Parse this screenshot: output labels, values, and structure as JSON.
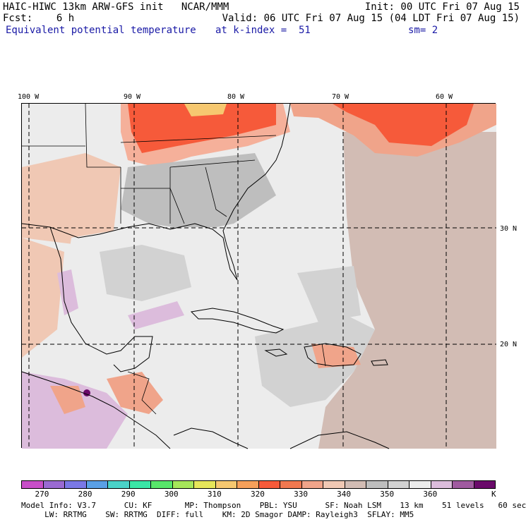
{
  "header": {
    "line1_left": "HAIC-HIWC 13km ARW-GFS init   NCAR/MMM",
    "line1_right": "Init: 00 UTC Fri 07 Aug 15",
    "line2_left": "Fcst:    6 h",
    "line2_right": "Valid: 06 UTC Fri 07 Aug 15 (04 LDT Fri 07 Aug 15)",
    "line3_field": "Equivalent potential temperature",
    "line3_level": "at k-index =  51",
    "line3_smooth": "sm= 2"
  },
  "map": {
    "lon_labels": [
      "100 W",
      "90 W",
      "80 W",
      "70 W",
      "60 W"
    ],
    "lat_labels": [
      "30 N",
      "20 N"
    ]
  },
  "colorbar": {
    "colors": [
      "#c84ec8",
      "#9a6ad2",
      "#7a78e6",
      "#5aa0e6",
      "#4ad2c8",
      "#3ae6a6",
      "#58e66a",
      "#a6e65a",
      "#e6e65a",
      "#f6c870",
      "#f6a05a",
      "#f65a3a",
      "#f07850",
      "#f0a48a",
      "#f0c8b4",
      "#d2bcb4",
      "#bebebe",
      "#d2d2d2",
      "#ececec",
      "#dcbcdc",
      "#a05aa0",
      "#6a0a6a"
    ],
    "tick_labels": [
      "270",
      "280",
      "290",
      "300",
      "310",
      "320",
      "330",
      "340",
      "350",
      "360"
    ],
    "unit": "K"
  },
  "footer": {
    "line1": "Model Info: V3.7      CU: KF       MP: Thompson    PBL: YSU      SF: Noah LSM    13 km    51 levels   60 sec",
    "line2": "     LW: RRTMG    SW: RRTMG  DIFF: full    KM: 2D Smagor DAMP: Rayleigh3  SFLAY: MM5"
  }
}
